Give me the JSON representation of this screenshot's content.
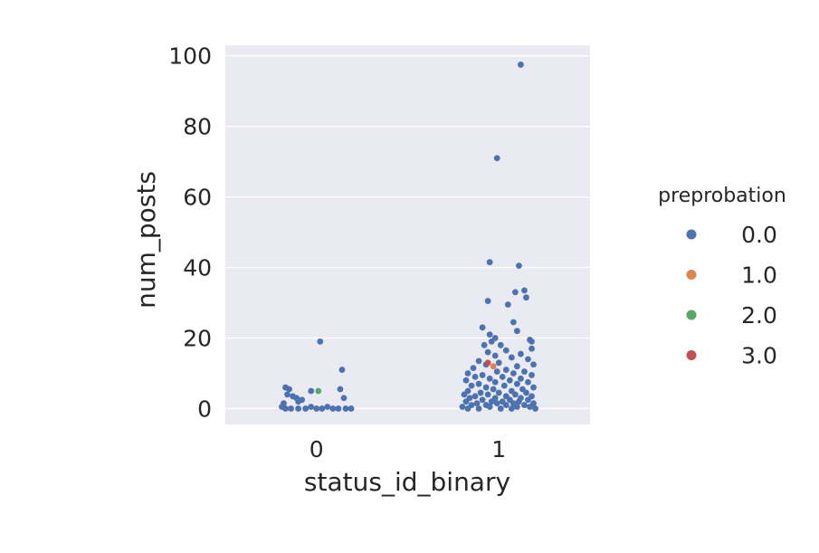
{
  "chart_data": {
    "type": "scatter",
    "subtype": "strip",
    "xlabel": "status_id_binary",
    "ylabel": "num_posts",
    "categories": [
      "0",
      "1"
    ],
    "ylim": [
      -4.5,
      103
    ],
    "y_ticks": [
      0,
      20,
      40,
      60,
      80,
      100
    ],
    "y_tick_labels": [
      "0",
      "20",
      "40",
      "60",
      "80",
      "100"
    ],
    "grid": true,
    "background": "#eaeaf2",
    "legend": {
      "title": "preprobation",
      "placement": "right",
      "entries": [
        {
          "label": "0.0",
          "color": "#4c72b0"
        },
        {
          "label": "1.0",
          "color": "#dd8452"
        },
        {
          "label": "2.0",
          "color": "#55a868"
        },
        {
          "label": "3.0",
          "color": "#c44e52"
        }
      ]
    },
    "series": [
      {
        "name": "0.0",
        "color": "#4c72b0",
        "points": [
          {
            "x": 0,
            "jitter": 0.02,
            "y": 19
          },
          {
            "x": 0,
            "jitter": 0.14,
            "y": 11
          },
          {
            "x": 0,
            "jitter": -0.17,
            "y": 6
          },
          {
            "x": 0,
            "jitter": -0.15,
            "y": 5.5
          },
          {
            "x": 0,
            "jitter": 0.13,
            "y": 5.5
          },
          {
            "x": 0,
            "jitter": -0.03,
            "y": 5
          },
          {
            "x": 0,
            "jitter": -0.16,
            "y": 4
          },
          {
            "x": 0,
            "jitter": -0.13,
            "y": 3.5
          },
          {
            "x": 0,
            "jitter": -0.11,
            "y": 3
          },
          {
            "x": 0,
            "jitter": -0.08,
            "y": 2.5
          },
          {
            "x": 0,
            "jitter": 0.15,
            "y": 3
          },
          {
            "x": 0,
            "jitter": -0.18,
            "y": 1.5
          },
          {
            "x": 0,
            "jitter": -0.1,
            "y": 2
          },
          {
            "x": 0,
            "jitter": -0.19,
            "y": 0.5
          },
          {
            "x": 0,
            "jitter": -0.17,
            "y": 0
          },
          {
            "x": 0,
            "jitter": -0.14,
            "y": 0
          },
          {
            "x": 0,
            "jitter": -0.1,
            "y": 0
          },
          {
            "x": 0,
            "jitter": -0.06,
            "y": 0
          },
          {
            "x": 0,
            "jitter": -0.03,
            "y": 0.5
          },
          {
            "x": 0,
            "jitter": 0.0,
            "y": 0
          },
          {
            "x": 0,
            "jitter": 0.03,
            "y": 0
          },
          {
            "x": 0,
            "jitter": 0.06,
            "y": 0.5
          },
          {
            "x": 0,
            "jitter": 0.09,
            "y": 0
          },
          {
            "x": 0,
            "jitter": 0.12,
            "y": 0
          },
          {
            "x": 0,
            "jitter": 0.16,
            "y": 0
          },
          {
            "x": 0,
            "jitter": 0.19,
            "y": 0
          },
          {
            "x": 1,
            "jitter": 0.12,
            "y": 97.5
          },
          {
            "x": 1,
            "jitter": -0.01,
            "y": 71
          },
          {
            "x": 1,
            "jitter": -0.05,
            "y": 41.5
          },
          {
            "x": 1,
            "jitter": 0.11,
            "y": 40.5
          },
          {
            "x": 1,
            "jitter": 0.14,
            "y": 33.5
          },
          {
            "x": 1,
            "jitter": 0.09,
            "y": 33
          },
          {
            "x": 1,
            "jitter": 0.15,
            "y": 31.5
          },
          {
            "x": 1,
            "jitter": -0.06,
            "y": 30.5
          },
          {
            "x": 1,
            "jitter": 0.05,
            "y": 29.5
          },
          {
            "x": 1,
            "jitter": 0.08,
            "y": 24.5
          },
          {
            "x": 1,
            "jitter": -0.09,
            "y": 23
          },
          {
            "x": 1,
            "jitter": 0.1,
            "y": 22
          },
          {
            "x": 1,
            "jitter": -0.05,
            "y": 21
          },
          {
            "x": 1,
            "jitter": -0.02,
            "y": 20
          },
          {
            "x": 1,
            "jitter": 0.17,
            "y": 19.5
          },
          {
            "x": 1,
            "jitter": 0.18,
            "y": 19
          },
          {
            "x": 1,
            "jitter": -0.04,
            "y": 19
          },
          {
            "x": 1,
            "jitter": 0.01,
            "y": 18
          },
          {
            "x": 1,
            "jitter": -0.08,
            "y": 18
          },
          {
            "x": 1,
            "jitter": 0.18,
            "y": 17
          },
          {
            "x": 1,
            "jitter": 0.04,
            "y": 16.5
          },
          {
            "x": 1,
            "jitter": -0.06,
            "y": 16
          },
          {
            "x": 1,
            "jitter": 0.12,
            "y": 15.5
          },
          {
            "x": 1,
            "jitter": -0.02,
            "y": 15
          },
          {
            "x": 1,
            "jitter": 0.07,
            "y": 14.5
          },
          {
            "x": 1,
            "jitter": 0.16,
            "y": 14
          },
          {
            "x": 1,
            "jitter": -0.11,
            "y": 13.5
          },
          {
            "x": 1,
            "jitter": 0.0,
            "y": 13
          },
          {
            "x": 1,
            "jitter": 0.19,
            "y": 12.5
          },
          {
            "x": 1,
            "jitter": -0.07,
            "y": 12.5
          },
          {
            "x": 1,
            "jitter": 0.1,
            "y": 12
          },
          {
            "x": 1,
            "jitter": -0.14,
            "y": 11.5
          },
          {
            "x": 1,
            "jitter": 0.04,
            "y": 11
          },
          {
            "x": 1,
            "jitter": -0.01,
            "y": 10.5
          },
          {
            "x": 1,
            "jitter": 0.14,
            "y": 10.5
          },
          {
            "x": 1,
            "jitter": -0.17,
            "y": 10
          },
          {
            "x": 1,
            "jitter": 0.08,
            "y": 10
          },
          {
            "x": 1,
            "jitter": -0.09,
            "y": 9.5
          },
          {
            "x": 1,
            "jitter": 0.18,
            "y": 9.5
          },
          {
            "x": 1,
            "jitter": 0.02,
            "y": 9
          },
          {
            "x": 1,
            "jitter": -0.13,
            "y": 9
          },
          {
            "x": 1,
            "jitter": 0.12,
            "y": 8.5
          },
          {
            "x": 1,
            "jitter": -0.05,
            "y": 8.5
          },
          {
            "x": 1,
            "jitter": 0.06,
            "y": 8
          },
          {
            "x": 1,
            "jitter": -0.18,
            "y": 8
          },
          {
            "x": 1,
            "jitter": 0.16,
            "y": 7.5
          },
          {
            "x": 1,
            "jitter": -0.02,
            "y": 7.5
          },
          {
            "x": 1,
            "jitter": -0.11,
            "y": 7
          },
          {
            "x": 1,
            "jitter": 0.1,
            "y": 7
          },
          {
            "x": 1,
            "jitter": 0.03,
            "y": 6.5
          },
          {
            "x": 1,
            "jitter": -0.15,
            "y": 6.5
          },
          {
            "x": 1,
            "jitter": 0.19,
            "y": 6
          },
          {
            "x": 1,
            "jitter": -0.07,
            "y": 6
          },
          {
            "x": 1,
            "jitter": 0.13,
            "y": 5.5
          },
          {
            "x": 1,
            "jitter": -0.03,
            "y": 5.5
          },
          {
            "x": 1,
            "jitter": 0.07,
            "y": 5
          },
          {
            "x": 1,
            "jitter": -0.17,
            "y": 5
          },
          {
            "x": 1,
            "jitter": -0.1,
            "y": 4.5
          },
          {
            "x": 1,
            "jitter": 0.15,
            "y": 4.5
          },
          {
            "x": 1,
            "jitter": 0.0,
            "y": 4.5
          },
          {
            "x": 1,
            "jitter": -0.19,
            "y": 4
          },
          {
            "x": 1,
            "jitter": -0.06,
            "y": 4
          },
          {
            "x": 1,
            "jitter": 0.09,
            "y": 4
          },
          {
            "x": 1,
            "jitter": 0.18,
            "y": 3.5
          },
          {
            "x": 1,
            "jitter": -0.13,
            "y": 3.5
          },
          {
            "x": 1,
            "jitter": 0.04,
            "y": 3.5
          },
          {
            "x": 1,
            "jitter": -0.02,
            "y": 3
          },
          {
            "x": 1,
            "jitter": 0.12,
            "y": 3
          },
          {
            "x": 1,
            "jitter": -0.16,
            "y": 3
          },
          {
            "x": 1,
            "jitter": 0.06,
            "y": 2.5
          },
          {
            "x": 1,
            "jitter": -0.09,
            "y": 2.5
          },
          {
            "x": 1,
            "jitter": 0.16,
            "y": 2.5
          },
          {
            "x": 1,
            "jitter": -0.04,
            "y": 2
          },
          {
            "x": 1,
            "jitter": 0.02,
            "y": 2
          },
          {
            "x": 1,
            "jitter": -0.18,
            "y": 2
          },
          {
            "x": 1,
            "jitter": 0.11,
            "y": 2
          },
          {
            "x": 1,
            "jitter": 0.19,
            "y": 1.5
          },
          {
            "x": 1,
            "jitter": -0.12,
            "y": 1.5
          },
          {
            "x": 1,
            "jitter": -0.01,
            "y": 1.5
          },
          {
            "x": 1,
            "jitter": 0.08,
            "y": 1.5
          },
          {
            "x": 1,
            "jitter": -0.07,
            "y": 1
          },
          {
            "x": 1,
            "jitter": 0.14,
            "y": 1
          },
          {
            "x": 1,
            "jitter": -0.15,
            "y": 1
          },
          {
            "x": 1,
            "jitter": 0.04,
            "y": 1
          },
          {
            "x": 1,
            "jitter": -0.2,
            "y": 0.5
          },
          {
            "x": 1,
            "jitter": -0.05,
            "y": 0.5
          },
          {
            "x": 1,
            "jitter": 0.1,
            "y": 0.5
          },
          {
            "x": 1,
            "jitter": 0.17,
            "y": 0.5
          },
          {
            "x": 1,
            "jitter": -0.11,
            "y": 0
          },
          {
            "x": 1,
            "jitter": 0.01,
            "y": 0
          },
          {
            "x": 1,
            "jitter": 0.07,
            "y": 0
          },
          {
            "x": 1,
            "jitter": 0.2,
            "y": 0
          },
          {
            "x": 1,
            "jitter": -0.17,
            "y": 0
          }
        ]
      },
      {
        "name": "1.0",
        "color": "#dd8452",
        "points": [
          {
            "x": 1,
            "jitter": -0.03,
            "y": 12
          }
        ]
      },
      {
        "name": "2.0",
        "color": "#55a868",
        "points": [
          {
            "x": 0,
            "jitter": 0.01,
            "y": 5
          }
        ]
      },
      {
        "name": "3.0",
        "color": "#c44e52",
        "points": [
          {
            "x": 1,
            "jitter": -0.06,
            "y": 13
          }
        ]
      }
    ]
  }
}
